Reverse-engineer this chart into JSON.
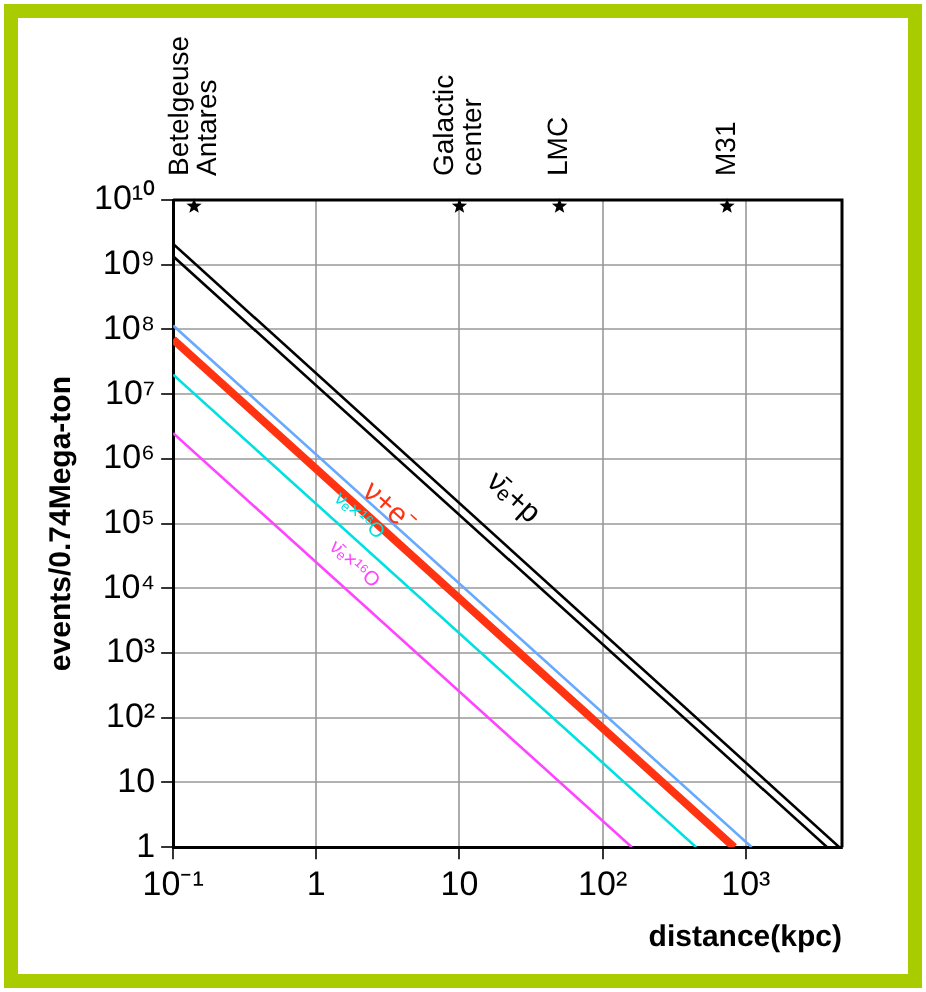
{
  "chart_data": {
    "type": "line",
    "xlabel": "distance(kpc)",
    "ylabel": "events/0.74Mega-ton",
    "log": "xy",
    "grid": true,
    "legend": false,
    "marker": "none",
    "line_style": "solid",
    "xlim": [
      0.1,
      4700
    ],
    "ylim": [
      1,
      10000000000
    ],
    "xticks": [
      {
        "value": 0.1,
        "label": "10⁻¹"
      },
      1,
      10,
      {
        "value": 100,
        "label": "10²"
      },
      {
        "value": 1000,
        "label": "10³"
      }
    ],
    "yticks": [
      1,
      10,
      {
        "value": 100,
        "label": "10²"
      },
      {
        "value": 1000,
        "label": "10³"
      },
      {
        "value": 10000,
        "label": "10⁴"
      },
      {
        "value": 100000,
        "label": "10⁵"
      },
      {
        "value": 1000000,
        "label": "10⁶"
      },
      {
        "value": 10000000,
        "label": "10⁷"
      },
      {
        "value": 100000000,
        "label": "10⁸"
      },
      {
        "value": 1000000000,
        "label": "10⁹"
      },
      {
        "value": 10000000000,
        "label": "10¹⁰"
      }
    ],
    "series": [
      {
        "name": "ν̄ₑ+p",
        "color": "#000000",
        "x": [
          0.1,
          4500
        ],
        "values": [
          2100000000,
          1
        ]
      },
      {
        "color": "#000000",
        "x": [
          0.1,
          3700
        ],
        "values": [
          1350000000,
          1
        ]
      },
      {
        "color": "#66aaff",
        "x": [
          0.1,
          1100
        ],
        "values": [
          115000000,
          1
        ]
      },
      {
        "name": "ν+e⁻",
        "color": "#ff3311",
        "x": [
          0.1,
          830
        ],
        "values": [
          70000000,
          1
        ]
      },
      {
        "name": "νₑ×¹⁶O",
        "color": "#00e0e0",
        "x": [
          0.1,
          450
        ],
        "values": [
          20000000,
          1
        ]
      },
      {
        "name": "ν̄ₑ×¹⁶O",
        "color": "#ff44ff",
        "x": [
          0.1,
          160
        ],
        "values": [
          2500000,
          1
        ]
      },
      {
        "type": "scatter",
        "marker": "star",
        "color": "#000000",
        "x": [
          0.14,
          10,
          50,
          740
        ],
        "values": [
          8000000000,
          8000000000,
          8000000000,
          8000000000
        ],
        "value_labels": [
          "Betelgeuse\nAntares",
          "Galactic\ncenter",
          "LMC",
          "M31"
        ]
      }
    ]
  }
}
